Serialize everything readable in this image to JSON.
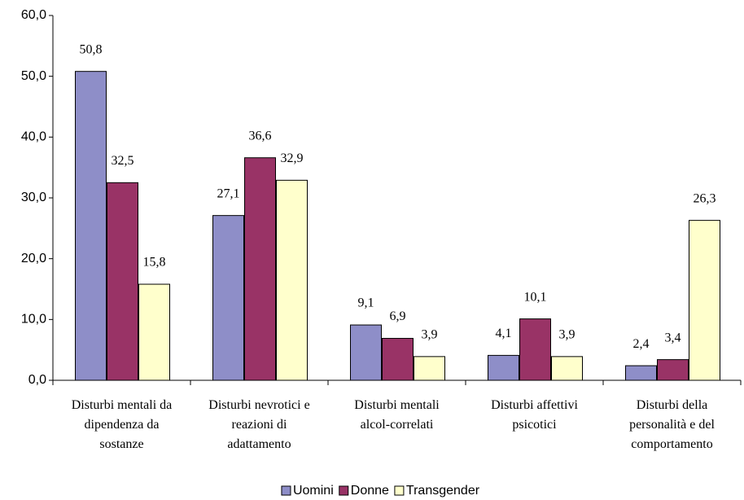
{
  "chart_data": {
    "type": "bar",
    "categories": [
      "Disturbi mentali da dipendenza da sostanze",
      "Disturbi nevrotici e reazioni di adattamento",
      "Disturbi mentali alcol-correlati",
      "Disturbi affettivi psicotici",
      "Disturbi della personalità e del comportamento"
    ],
    "series": [
      {
        "name": "Uomini",
        "color": "#8e8ec8",
        "values": [
          50.8,
          27.1,
          9.1,
          4.1,
          2.4
        ],
        "value_labels": [
          "50,8",
          "27,1",
          "9,1",
          "4,1",
          "2,4"
        ]
      },
      {
        "name": "Donne",
        "color": "#993366",
        "values": [
          32.5,
          36.6,
          6.9,
          10.1,
          3.4
        ],
        "value_labels": [
          "32,5",
          "36,6",
          "6,9",
          "10,1",
          "3,4"
        ]
      },
      {
        "name": "Transgender",
        "color": "#ffffcc",
        "values": [
          15.8,
          32.9,
          3.9,
          3.9,
          26.3
        ],
        "value_labels": [
          "15,8",
          "32,9",
          "3,9",
          "3,9",
          "26,3"
        ]
      }
    ],
    "ylim": [
      0,
      60
    ],
    "yticks": [
      {
        "value": 0,
        "label": "0,0"
      },
      {
        "value": 10,
        "label": "10,0"
      },
      {
        "value": 20,
        "label": "20,0"
      },
      {
        "value": 30,
        "label": "30,0"
      },
      {
        "value": 40,
        "label": "40,0"
      },
      {
        "value": 50,
        "label": "50,0"
      },
      {
        "value": 60,
        "label": "60,0"
      }
    ],
    "grid": false,
    "legend": "bottom"
  }
}
